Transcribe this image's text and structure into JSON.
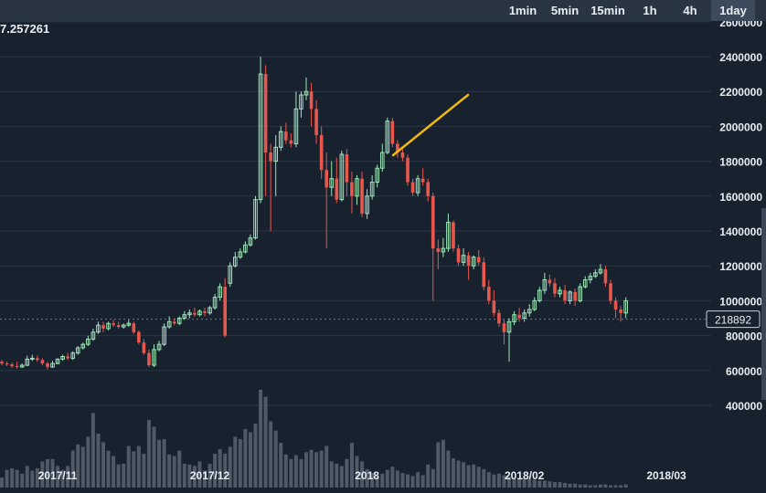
{
  "toolbar": {
    "timeframes": [
      {
        "label": "1min",
        "active": false
      },
      {
        "label": "5min",
        "active": false
      },
      {
        "label": "15min",
        "active": false
      },
      {
        "label": "1h",
        "active": false
      },
      {
        "label": "4h",
        "active": false
      },
      {
        "label": "1day",
        "active": true
      }
    ]
  },
  "readout": {
    "text": "7.257261"
  },
  "volume_marker": {
    "text": "218892",
    "value": 218892
  },
  "colors": {
    "bg": "#18222f",
    "up": "#9ee6b8",
    "down": "#e8574d",
    "volume": "#505a66",
    "grid": "#2b3645",
    "trendline": "#f0b90b",
    "axis_text": "#e8edf2"
  },
  "chart_data": {
    "type": "candlestick",
    "y_ticks": [
      400000,
      600000,
      800000,
      1000000,
      1200000,
      1400000,
      1600000,
      1800000,
      2000000,
      2200000,
      2400000,
      2600000
    ],
    "y_tick_labels": [
      "400000",
      "600000",
      "800000",
      "1000000",
      "1200000",
      "1400000",
      "1600000",
      "1800000",
      "2000000",
      "2200000",
      "2400000",
      "2600000"
    ],
    "x_labels": [
      {
        "label": "2017/11",
        "index": 11
      },
      {
        "label": "2017/12",
        "index": 41
      },
      {
        "label": "2018",
        "index": 72
      },
      {
        "label": "2018/02",
        "index": 103
      },
      {
        "label": "2018/03",
        "index": 131
      }
    ],
    "candles": [
      [
        650000,
        660000,
        640000,
        630000,
        13000
      ],
      [
        640000,
        650000,
        635000,
        625000,
        23000
      ],
      [
        635000,
        645000,
        625000,
        615000,
        25000
      ],
      [
        625000,
        650000,
        620000,
        610000,
        23000
      ],
      [
        620000,
        640000,
        630000,
        615000,
        18000
      ],
      [
        630000,
        685000,
        665000,
        625000,
        28000
      ],
      [
        665000,
        690000,
        670000,
        655000,
        22000
      ],
      [
        670000,
        685000,
        660000,
        650000,
        25000
      ],
      [
        660000,
        670000,
        640000,
        630000,
        34000
      ],
      [
        640000,
        650000,
        620000,
        605000,
        37000
      ],
      [
        620000,
        655000,
        640000,
        615000,
        37000
      ],
      [
        640000,
        670000,
        665000,
        635000,
        28000
      ],
      [
        665000,
        690000,
        680000,
        655000,
        23000
      ],
      [
        680000,
        700000,
        670000,
        660000,
        28000
      ],
      [
        670000,
        710000,
        700000,
        660000,
        48000
      ],
      [
        700000,
        740000,
        730000,
        690000,
        56000
      ],
      [
        730000,
        760000,
        750000,
        720000,
        53000
      ],
      [
        750000,
        800000,
        780000,
        740000,
        66000
      ],
      [
        780000,
        840000,
        820000,
        770000,
        97000
      ],
      [
        820000,
        880000,
        860000,
        810000,
        70000
      ],
      [
        860000,
        880000,
        840000,
        820000,
        59000
      ],
      [
        840000,
        880000,
        870000,
        830000,
        48000
      ],
      [
        870000,
        890000,
        860000,
        850000,
        41000
      ],
      [
        860000,
        880000,
        850000,
        840000,
        30000
      ],
      [
        850000,
        870000,
        860000,
        840000,
        31000
      ],
      [
        860000,
        890000,
        870000,
        850000,
        54000
      ],
      [
        870000,
        880000,
        820000,
        810000,
        47000
      ],
      [
        820000,
        830000,
        760000,
        750000,
        54000
      ],
      [
        760000,
        780000,
        700000,
        690000,
        44000
      ],
      [
        700000,
        720000,
        630000,
        620000,
        88000
      ],
      [
        630000,
        750000,
        720000,
        620000,
        79000
      ],
      [
        720000,
        770000,
        750000,
        710000,
        62000
      ],
      [
        750000,
        870000,
        850000,
        740000,
        63000
      ],
      [
        850000,
        910000,
        880000,
        840000,
        43000
      ],
      [
        880000,
        900000,
        870000,
        860000,
        41000
      ],
      [
        870000,
        910000,
        900000,
        860000,
        48000
      ],
      [
        900000,
        940000,
        920000,
        890000,
        31000
      ],
      [
        920000,
        950000,
        930000,
        900000,
        30000
      ],
      [
        930000,
        960000,
        920000,
        910000,
        28000
      ],
      [
        920000,
        950000,
        940000,
        910000,
        34000
      ],
      [
        940000,
        960000,
        930000,
        910000,
        22000
      ],
      [
        930000,
        970000,
        960000,
        920000,
        31000
      ],
      [
        960000,
        1040000,
        1020000,
        950000,
        44000
      ],
      [
        1020000,
        1100000,
        1080000,
        1000000,
        50000
      ],
      [
        1080000,
        1130000,
        800000,
        790000,
        44000
      ],
      [
        1100000,
        1220000,
        1200000,
        1080000,
        53000
      ],
      [
        1200000,
        1280000,
        1250000,
        1190000,
        66000
      ],
      [
        1250000,
        1300000,
        1280000,
        1240000,
        63000
      ],
      [
        1280000,
        1340000,
        1320000,
        1270000,
        76000
      ],
      [
        1320000,
        1380000,
        1360000,
        1310000,
        72000
      ],
      [
        1360000,
        1600000,
        1580000,
        1350000,
        83000
      ],
      [
        1580000,
        2400000,
        2300000,
        1560000,
        127000
      ],
      [
        2300000,
        2350000,
        1850000,
        1600000,
        118000
      ],
      [
        1850000,
        1900000,
        1800000,
        1400000,
        86000
      ],
      [
        1800000,
        1950000,
        1880000,
        1600000,
        74000
      ],
      [
        1880000,
        2000000,
        1970000,
        1860000,
        58000
      ],
      [
        1970000,
        2020000,
        1920000,
        1900000,
        43000
      ],
      [
        1920000,
        1960000,
        1900000,
        1880000,
        37000
      ],
      [
        1900000,
        2200000,
        2100000,
        1880000,
        42000
      ],
      [
        2100000,
        2200000,
        2180000,
        2050000,
        37000
      ],
      [
        2180000,
        2280000,
        2200000,
        2150000,
        46000
      ],
      [
        2200000,
        2250000,
        2100000,
        2000000,
        49000
      ],
      [
        2100000,
        2150000,
        1950000,
        1900000,
        46000
      ],
      [
        1950000,
        2000000,
        1750000,
        1700000,
        48000
      ],
      [
        1750000,
        1850000,
        1650000,
        1300000,
        54000
      ],
      [
        1650000,
        1800000,
        1700000,
        1600000,
        34000
      ],
      [
        1700000,
        1820000,
        1580000,
        1560000,
        31000
      ],
      [
        1580000,
        1860000,
        1840000,
        1570000,
        28000
      ],
      [
        1840000,
        1870000,
        1680000,
        1600000,
        37000
      ],
      [
        1680000,
        1740000,
        1600000,
        1500000,
        58000
      ],
      [
        1600000,
        1720000,
        1700000,
        1550000,
        41000
      ],
      [
        1700000,
        1740000,
        1500000,
        1480000,
        34000
      ],
      [
        1500000,
        1640000,
        1600000,
        1470000,
        24000
      ],
      [
        1600000,
        1720000,
        1680000,
        1580000,
        19000
      ],
      [
        1680000,
        1780000,
        1760000,
        1650000,
        14000
      ],
      [
        1760000,
        1900000,
        1850000,
        1740000,
        18000
      ],
      [
        1850000,
        2050000,
        2030000,
        1840000,
        23000
      ],
      [
        2030000,
        2050000,
        1900000,
        1880000,
        27000
      ],
      [
        1900000,
        1920000,
        1850000,
        1820000,
        22000
      ],
      [
        1850000,
        1870000,
        1820000,
        1800000,
        19000
      ],
      [
        1820000,
        1840000,
        1680000,
        1660000,
        17000
      ],
      [
        1680000,
        1700000,
        1620000,
        1600000,
        15000
      ],
      [
        1620000,
        1720000,
        1700000,
        1600000,
        20000
      ],
      [
        1700000,
        1760000,
        1680000,
        1660000,
        16000
      ],
      [
        1680000,
        1700000,
        1600000,
        1570000,
        30000
      ],
      [
        1600000,
        1620000,
        1300000,
        1000000,
        24000
      ],
      [
        1300000,
        1350000,
        1280000,
        1180000,
        59000
      ],
      [
        1280000,
        1360000,
        1300000,
        1250000,
        62000
      ],
      [
        1300000,
        1500000,
        1450000,
        1280000,
        48000
      ],
      [
        1450000,
        1460000,
        1300000,
        1280000,
        38000
      ],
      [
        1300000,
        1320000,
        1220000,
        1200000,
        35000
      ],
      [
        1220000,
        1300000,
        1260000,
        1200000,
        33000
      ],
      [
        1260000,
        1280000,
        1200000,
        1120000,
        29000
      ],
      [
        1200000,
        1260000,
        1250000,
        1180000,
        30000
      ],
      [
        1250000,
        1290000,
        1220000,
        1200000,
        27000
      ],
      [
        1220000,
        1250000,
        1080000,
        1060000,
        24000
      ],
      [
        1080000,
        1120000,
        1000000,
        980000,
        20000
      ],
      [
        1000000,
        1060000,
        930000,
        910000,
        17000
      ],
      [
        930000,
        950000,
        870000,
        850000,
        18000
      ],
      [
        870000,
        890000,
        820000,
        750000,
        16000
      ],
      [
        820000,
        900000,
        880000,
        650000,
        14000
      ],
      [
        880000,
        940000,
        920000,
        860000,
        12000
      ],
      [
        920000,
        960000,
        900000,
        880000,
        11000
      ],
      [
        900000,
        950000,
        930000,
        880000,
        12000
      ],
      [
        930000,
        980000,
        950000,
        910000,
        11000
      ],
      [
        950000,
        1020000,
        1000000,
        940000,
        10000
      ],
      [
        1000000,
        1080000,
        1060000,
        990000,
        9000
      ],
      [
        1060000,
        1160000,
        1120000,
        1040000,
        9000
      ],
      [
        1120000,
        1150000,
        1100000,
        1080000,
        8000
      ],
      [
        1100000,
        1130000,
        1040000,
        1020000,
        7000
      ],
      [
        1040000,
        1080000,
        1060000,
        1020000,
        7000
      ],
      [
        1060000,
        1090000,
        1000000,
        980000,
        6000
      ],
      [
        1000000,
        1060000,
        1050000,
        980000,
        5000
      ],
      [
        1050000,
        1070000,
        1000000,
        970000,
        5000
      ],
      [
        1000000,
        1100000,
        1080000,
        990000,
        4000
      ],
      [
        1080000,
        1140000,
        1120000,
        1070000,
        4000
      ],
      [
        1120000,
        1160000,
        1140000,
        1100000,
        3000
      ],
      [
        1140000,
        1180000,
        1160000,
        1130000,
        3000
      ],
      [
        1160000,
        1210000,
        1180000,
        1150000,
        4000
      ],
      [
        1180000,
        1200000,
        1100000,
        1080000,
        4000
      ],
      [
        1100000,
        1120000,
        1000000,
        980000,
        3000
      ],
      [
        1000000,
        1020000,
        950000,
        900000,
        3000
      ],
      [
        950000,
        970000,
        930000,
        880000,
        3000
      ],
      [
        930000,
        1020000,
        1000000,
        900000,
        4000
      ]
    ]
  }
}
